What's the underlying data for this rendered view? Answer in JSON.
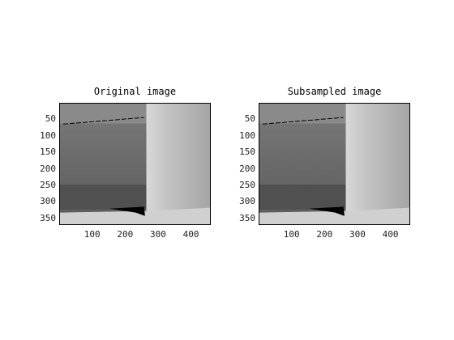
{
  "panels": [
    {
      "title": "Original image",
      "y_ticks": [
        "50",
        "100",
        "150",
        "200",
        "250",
        "300",
        "350"
      ],
      "x_ticks": [
        "100",
        "200",
        "300",
        "400"
      ],
      "noise": "none"
    },
    {
      "title": "Subsampled image",
      "y_ticks": [
        "50",
        "100",
        "150",
        "200",
        "250",
        "300",
        "350"
      ],
      "x_ticks": [
        "100",
        "200",
        "300",
        "400"
      ],
      "noise": "high"
    }
  ],
  "image_extent": {
    "x": [
      0,
      460
    ],
    "y": [
      0,
      370
    ]
  }
}
